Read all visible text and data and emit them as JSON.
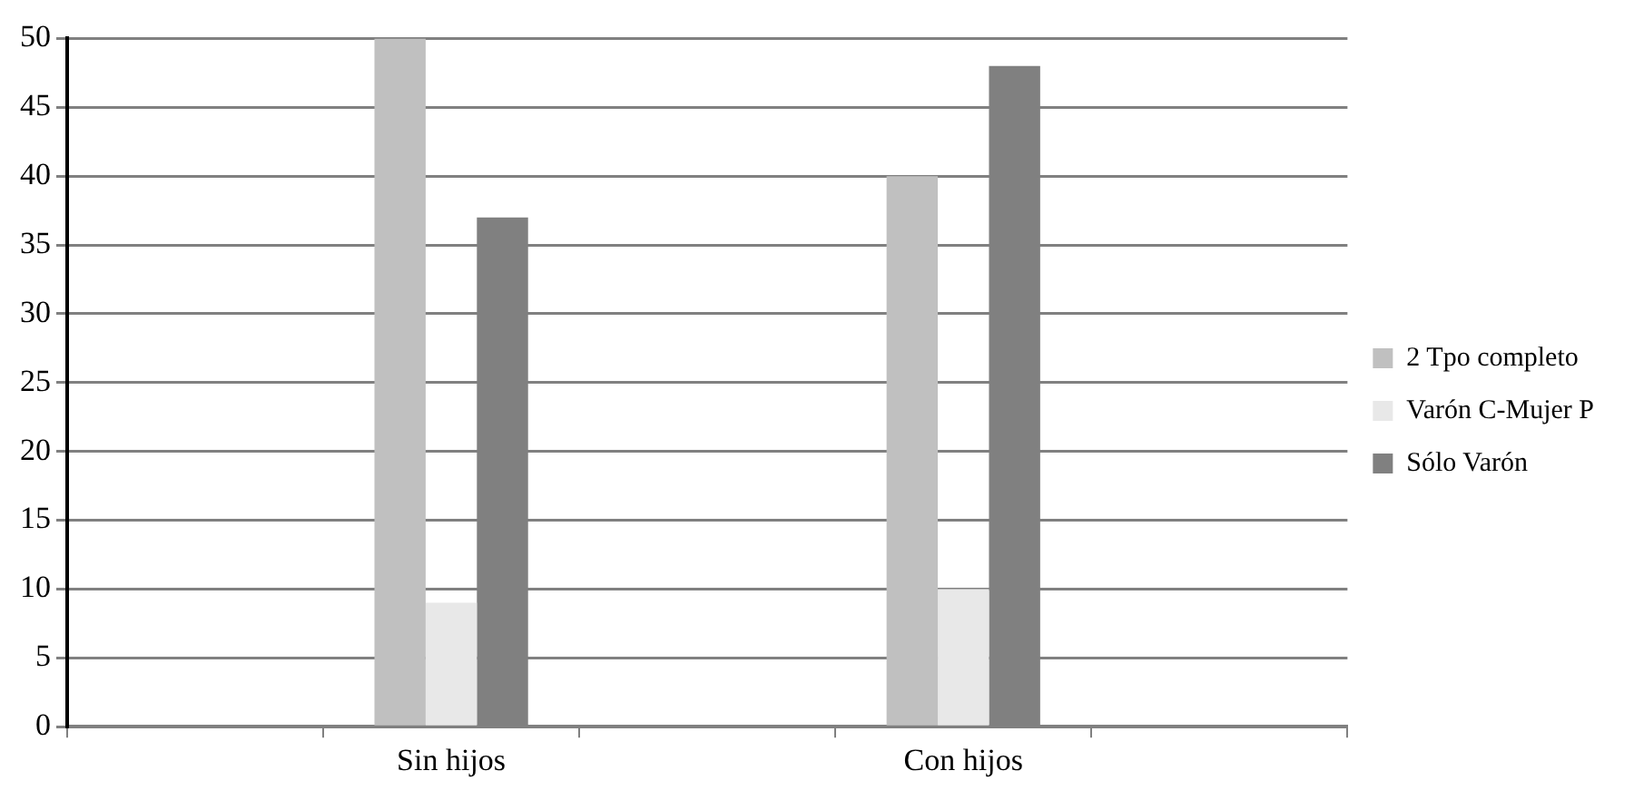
{
  "chart_data": {
    "type": "bar",
    "categories": [
      null,
      "Sin hijos",
      null,
      "Con hijos",
      null
    ],
    "series": [
      {
        "name": "2 Tpo completo",
        "color": "#c0c0c0",
        "values": [
          null,
          50,
          null,
          40,
          null
        ]
      },
      {
        "name": "Varón C-Mujer P",
        "color": "#e8e8e8",
        "values": [
          null,
          9,
          null,
          10,
          null
        ]
      },
      {
        "name": "Sólo Varón",
        "color": "#808080",
        "values": [
          null,
          37,
          null,
          48,
          null
        ]
      }
    ],
    "ylim": [
      0,
      50
    ],
    "yticks": [
      0,
      5,
      10,
      15,
      20,
      25,
      30,
      35,
      40,
      45,
      50
    ],
    "grid": "y",
    "legend": "right"
  }
}
